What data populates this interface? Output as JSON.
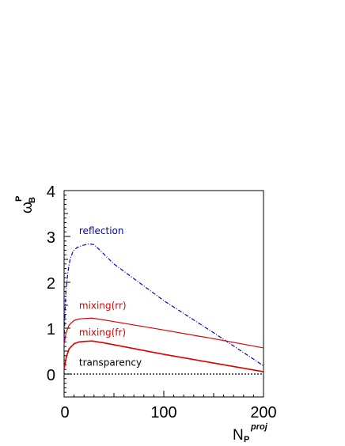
{
  "chart_data": {
    "type": "line",
    "xlabel": {
      "main": "N",
      "sub": "P",
      "sup": "proj"
    },
    "ylabel": {
      "main": "ω",
      "sub": "B",
      "sup": "P"
    },
    "xlim": [
      0,
      200
    ],
    "ylim": [
      -0.5,
      4
    ],
    "xticks": [
      "0",
      "100",
      "200"
    ],
    "yticks": [
      "0",
      "1",
      "2",
      "3",
      "4"
    ],
    "xtick_values": [
      0,
      100,
      200
    ],
    "ytick_values": [
      0,
      1,
      2,
      3,
      4
    ],
    "grid": false,
    "series": [
      {
        "name": "reflection",
        "color": "#0000cc",
        "style": "dash-dot",
        "label_at": [
          15,
          3.05
        ],
        "points": [
          [
            0,
            0.7
          ],
          [
            1,
            1.4
          ],
          [
            2,
            1.85
          ],
          [
            4,
            2.25
          ],
          [
            6,
            2.5
          ],
          [
            9,
            2.68
          ],
          [
            13,
            2.76
          ],
          [
            18,
            2.8
          ],
          [
            25,
            2.84
          ],
          [
            30,
            2.82
          ],
          [
            35,
            2.72
          ],
          [
            50,
            2.4
          ],
          [
            100,
            1.6
          ],
          [
            150,
            0.9
          ],
          [
            200,
            0.18
          ]
        ]
      },
      {
        "name": "mixing(rr)",
        "color": "#dd0000",
        "style": "solid",
        "width": 1.2,
        "label_at": [
          15,
          1.42
        ],
        "points": [
          [
            0,
            0.65
          ],
          [
            2,
            0.9
          ],
          [
            5,
            1.07
          ],
          [
            10,
            1.17
          ],
          [
            15,
            1.2
          ],
          [
            20,
            1.21
          ],
          [
            28,
            1.22
          ],
          [
            40,
            1.18
          ],
          [
            100,
            0.96
          ],
          [
            150,
            0.77
          ],
          [
            200,
            0.57
          ]
        ]
      },
      {
        "name": "mixing(fr)",
        "color": "#dd0000",
        "style": "solid",
        "width": 1.6,
        "label_at": [
          15,
          0.84
        ],
        "points": [
          [
            0,
            0.1
          ],
          [
            2,
            0.35
          ],
          [
            5,
            0.55
          ],
          [
            10,
            0.66
          ],
          [
            15,
            0.7
          ],
          [
            20,
            0.71
          ],
          [
            28,
            0.72
          ],
          [
            40,
            0.68
          ],
          [
            100,
            0.43
          ],
          [
            150,
            0.24
          ],
          [
            200,
            0.05
          ]
        ]
      },
      {
        "name": "transparency",
        "color": "#000000",
        "style": "dotted",
        "label_at": [
          15,
          0.18
        ],
        "points": [
          [
            0,
            0.0
          ],
          [
            200,
            0.0
          ]
        ]
      }
    ]
  }
}
